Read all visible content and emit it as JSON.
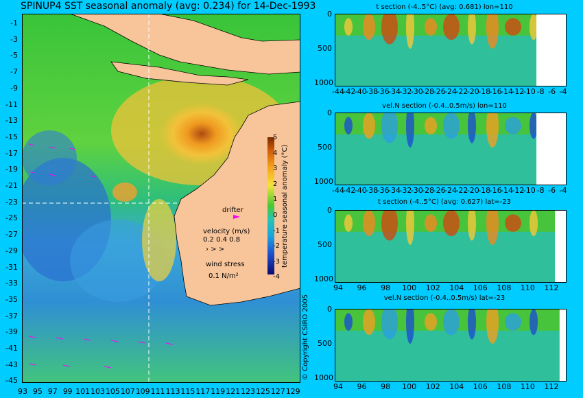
{
  "title": "SPINUP4 SST seasonal anomaly (avg: 0.234) for 14-Dec-1993",
  "map": {
    "lat_ticks": [
      "-1",
      "-3",
      "-5",
      "-7",
      "-9",
      "-11",
      "-13",
      "-15",
      "-17",
      "-19",
      "-21",
      "-23",
      "-25",
      "-27",
      "-29",
      "-31",
      "-33",
      "-35",
      "-37",
      "-39",
      "-41",
      "-43",
      "-45"
    ],
    "lon_ticks": [
      "93",
      "95",
      "97",
      "99",
      "101",
      "103",
      "105",
      "107",
      "109",
      "111",
      "113",
      "115",
      "117",
      "119",
      "121",
      "123",
      "125",
      "127",
      "129"
    ],
    "colorbar_ticks": [
      "5",
      "4",
      "3",
      "2",
      "1",
      "0",
      "-1",
      "-2",
      "-3",
      "-4"
    ],
    "colorbar_label": "temperature seasonal anomaly (°C)",
    "drifter_label": "drifter",
    "velocity_label": "velocity (m/s)",
    "velocity_scale": "0.2 0.4 0.8",
    "wind_label": "wind stress",
    "wind_scale": "0.1 N/m²"
  },
  "copyright": "© Copyright CSIRO 2005",
  "panels": [
    {
      "title": "t section (-4..5°C) (avg: 0.681) lon=110",
      "xticks": [
        "-44",
        "-42",
        "-40",
        "-38",
        "-36",
        "-34",
        "-32",
        "-30",
        "-28",
        "-26",
        "-24",
        "-22",
        "-20",
        "-18",
        "-16",
        "-14",
        "-12",
        "-10",
        "-8",
        "-6",
        "-4"
      ],
      "yticks": [
        "0",
        "500",
        "1000"
      ]
    },
    {
      "title": "vel.N section (-0.4..0.5m/s) lon=110",
      "xticks": [
        "-44",
        "-42",
        "-40",
        "-38",
        "-36",
        "-34",
        "-32",
        "-30",
        "-28",
        "-26",
        "-24",
        "-22",
        "-20",
        "-18",
        "-16",
        "-14",
        "-12",
        "-10",
        "-8",
        "-6",
        "-4"
      ],
      "yticks": [
        "0",
        "500",
        "1000"
      ]
    },
    {
      "title": "t section (-4..5°C) (avg: 0.627) lat=-23",
      "xticks": [
        "94",
        "96",
        "98",
        "100",
        "102",
        "104",
        "106",
        "108",
        "110",
        "112"
      ],
      "yticks": [
        "0",
        "500",
        "1000"
      ]
    },
    {
      "title": "vel.N section (-0.4..0.5m/s) lat=-23",
      "xticks": [
        "94",
        "96",
        "98",
        "100",
        "102",
        "104",
        "106",
        "108",
        "110",
        "112"
      ],
      "yticks": [
        "0",
        "500",
        "1000"
      ]
    }
  ]
}
